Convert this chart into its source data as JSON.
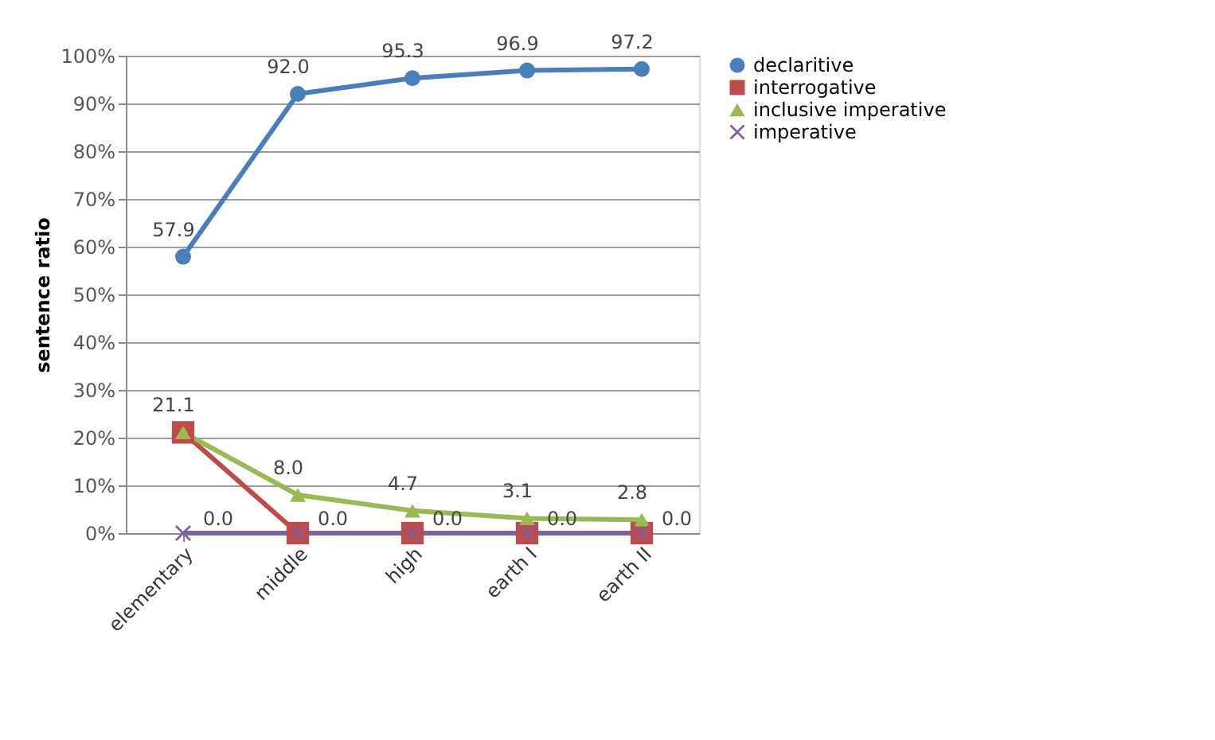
{
  "chart_data": {
    "type": "line",
    "ylabel": "sentence ratio",
    "categories": [
      "elementary",
      "middle",
      "high",
      "earth I",
      "earth II"
    ],
    "series": [
      {
        "name": "declaritive",
        "color": "#4a7ebb",
        "marker": "circle",
        "values": [
          57.9,
          92.0,
          95.3,
          96.9,
          97.2
        ],
        "value_labels": [
          "57.9",
          "92.0",
          "95.3",
          "96.9",
          "97.2"
        ]
      },
      {
        "name": "interrogative",
        "color": "#be4b48",
        "marker": "square",
        "values": [
          21.1,
          0.0,
          0.0,
          0.0,
          0.0
        ]
      },
      {
        "name": "inclusive imperative",
        "color": "#98b954",
        "marker": "triangle",
        "values": [
          21.1,
          8.0,
          4.7,
          3.1,
          2.8
        ],
        "value_labels": [
          "21.1",
          "8.0",
          "4.7",
          "3.1",
          "2.8"
        ]
      },
      {
        "name": "imperative",
        "color": "#7d60a0",
        "marker": "cross",
        "values": [
          0.0,
          0.0,
          0.0,
          0.0,
          0.0
        ],
        "value_labels": [
          "0.0",
          "0.0",
          "0.0",
          "0.0",
          "0.0"
        ]
      }
    ],
    "ylim": [
      0,
      100
    ],
    "yticks": [
      {
        "value": 0,
        "label": "0%"
      },
      {
        "value": 10,
        "label": "10%"
      },
      {
        "value": 20,
        "label": "20%"
      },
      {
        "value": 30,
        "label": "30%"
      },
      {
        "value": 40,
        "label": "40%"
      },
      {
        "value": 50,
        "label": "50%"
      },
      {
        "value": 60,
        "label": "60%"
      },
      {
        "value": 70,
        "label": "70%"
      },
      {
        "value": 80,
        "label": "80%"
      },
      {
        "value": 90,
        "label": "90%"
      },
      {
        "value": 100,
        "label": "100%"
      }
    ],
    "grid": "y",
    "legend": "right",
    "line_style": "solid"
  }
}
